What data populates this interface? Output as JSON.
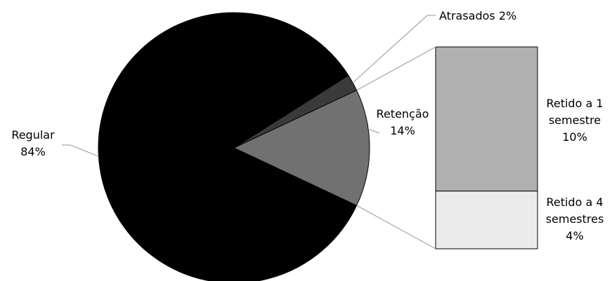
{
  "chart_data": {
    "type": "bar-of-pie",
    "title": "",
    "pie": {
      "slices": [
        {
          "name": "Regular",
          "value": 84,
          "label_line1": "Regular",
          "label_line2": "84%",
          "color": "#000000"
        },
        {
          "name": "Atrasados",
          "value": 2,
          "label_line1": "Atrasados 2%",
          "label_line2": "",
          "color": "#3a3a3a"
        },
        {
          "name": "Retenção",
          "value": 14,
          "label_line1": "Retenção",
          "label_line2": "14%",
          "color": "#717171"
        }
      ]
    },
    "bar": {
      "of": "Retenção",
      "segments": [
        {
          "name": "Retido a 1 semestre",
          "value": 10,
          "label_lines": [
            "Retido a 1",
            "semestre",
            "10%"
          ],
          "color": "#b0b0b0"
        },
        {
          "name": "Retido a 4 semestres",
          "value": 4,
          "label_lines": [
            "Retido a 4",
            "semestres",
            "4%"
          ],
          "color": "#ebebeb"
        }
      ]
    },
    "legend": "none",
    "grid": false
  }
}
